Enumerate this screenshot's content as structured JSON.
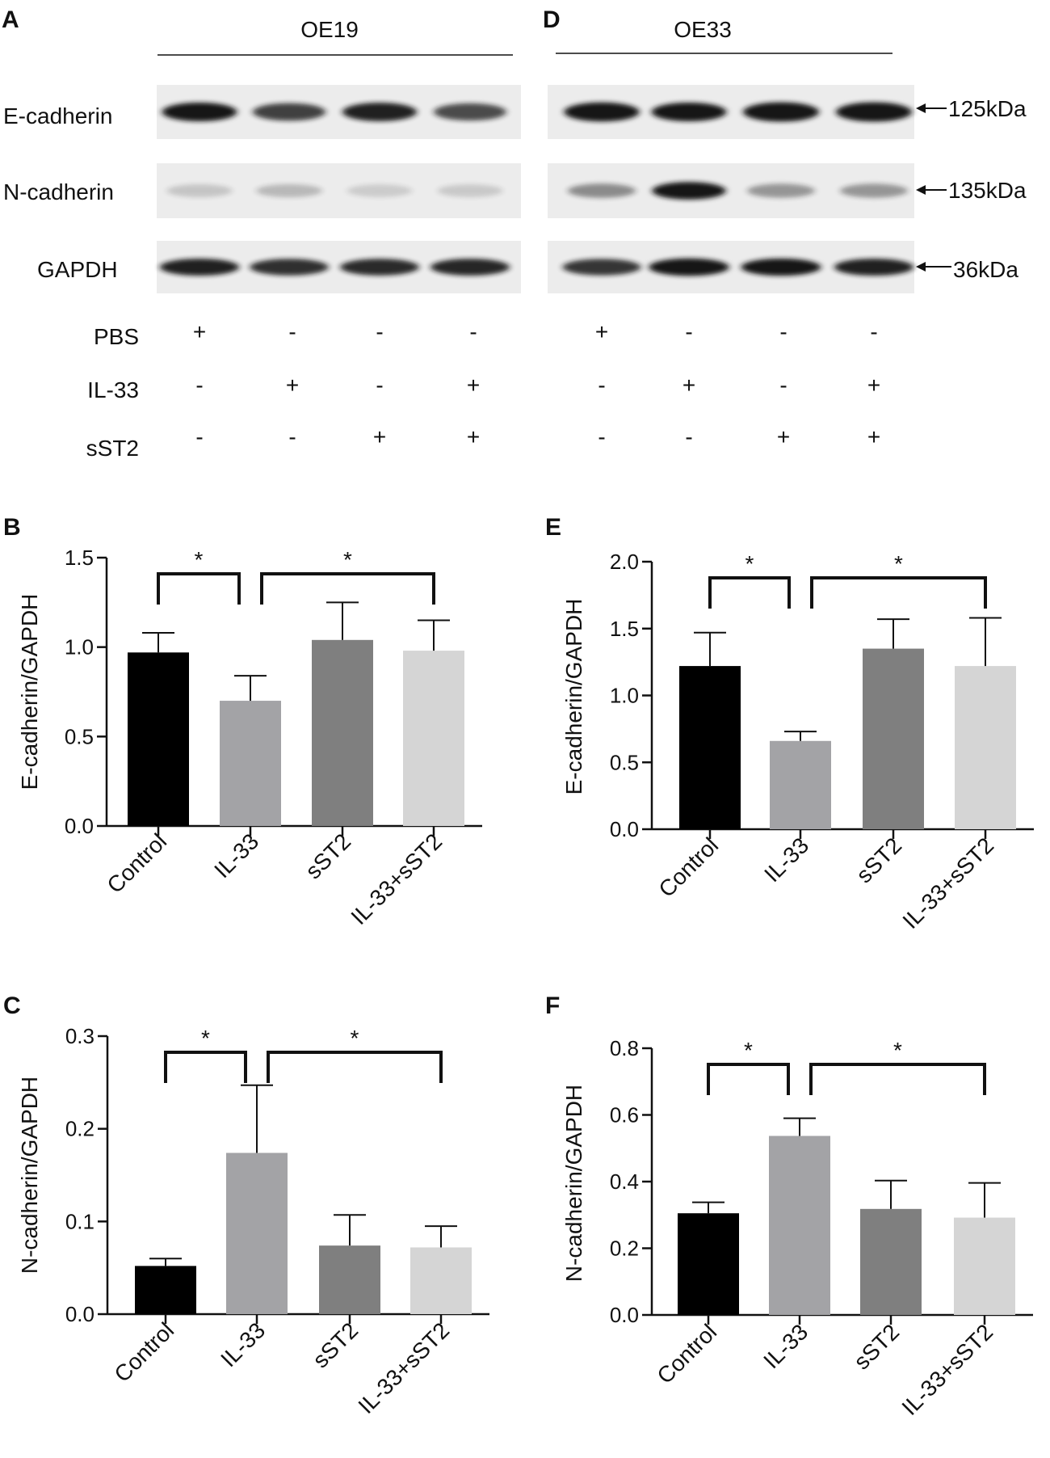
{
  "panel_letters": {
    "a": "A",
    "b": "B",
    "c": "C",
    "d": "D",
    "e": "E",
    "f": "F"
  },
  "blot_left": {
    "cell_line": "OE19"
  },
  "blot_right": {
    "cell_line": "OE33"
  },
  "row_labels": [
    "E-cadherin",
    "N-cadherin",
    "GAPDH"
  ],
  "mw_labels": [
    "125kDa",
    "135kDa",
    "36kDa"
  ],
  "treatments": [
    {
      "name": "PBS",
      "signs": [
        "+",
        "-",
        "-",
        "-"
      ]
    },
    {
      "name": "IL-33",
      "signs": [
        "-",
        "+",
        "-",
        "+"
      ]
    },
    {
      "name": "sST2",
      "signs": [
        "-",
        "-",
        "+",
        "+"
      ]
    }
  ],
  "colors": {
    "control": "#000000",
    "il33": "#a3a3a6",
    "sst2": "#7f7f7f",
    "il33_sst2": "#d5d5d5",
    "band": "#141414",
    "membrane": "#ececec"
  },
  "blot_bands": {
    "left": {
      "e_cadherin": [
        0.9,
        0.7,
        0.85,
        0.65
      ],
      "n_cadherin": [
        0.08,
        0.14,
        0.05,
        0.06
      ],
      "gapdh": [
        0.85,
        0.78,
        0.8,
        0.82
      ]
    },
    "right": {
      "e_cadherin": [
        0.95,
        0.9,
        1.0,
        1.0
      ],
      "n_cadherin": [
        0.35,
        0.95,
        0.3,
        0.3
      ],
      "gapdh": [
        0.75,
        0.95,
        0.9,
        0.85
      ]
    }
  },
  "chart_data": [
    {
      "panel": "B",
      "type": "bar",
      "categories": [
        "Control",
        "IL-33",
        "sST2",
        "IL-33+sST2"
      ],
      "values": [
        0.97,
        0.7,
        1.04,
        0.98
      ],
      "errors": [
        0.11,
        0.14,
        0.21,
        0.17
      ],
      "ylabel": "E-cadherin/GAPDH",
      "ylim": [
        0,
        1.5
      ],
      "yticks": [
        "0.0",
        "0.5",
        "1.0",
        "1.5"
      ],
      "tick_values": [
        0,
        0.5,
        1.0,
        1.5
      ],
      "significance": [
        {
          "from": 0,
          "to": 1,
          "label": "*"
        },
        {
          "from": 1,
          "to": 3,
          "label": "*"
        }
      ]
    },
    {
      "panel": "C",
      "type": "bar",
      "categories": [
        "Control",
        "IL-33",
        "sST2",
        "IL-33+sST2"
      ],
      "values": [
        0.052,
        0.174,
        0.074,
        0.072
      ],
      "errors": [
        0.008,
        0.073,
        0.033,
        0.023
      ],
      "ylabel": "N-cadherin/GAPDH",
      "ylim": [
        0,
        0.3
      ],
      "yticks": [
        "0.0",
        "0.1",
        "0.2",
        "0.3"
      ],
      "tick_values": [
        0,
        0.1,
        0.2,
        0.3
      ],
      "significance": [
        {
          "from": 0,
          "to": 1,
          "label": "*"
        },
        {
          "from": 1,
          "to": 3,
          "label": "*"
        }
      ]
    },
    {
      "panel": "E",
      "type": "bar",
      "categories": [
        "Control",
        "IL-33",
        "sST2",
        "IL-33+sST2"
      ],
      "values": [
        1.22,
        0.66,
        1.35,
        1.22
      ],
      "errors": [
        0.25,
        0.07,
        0.22,
        0.36
      ],
      "ylabel": "E-cadherin/GAPDH",
      "ylim": [
        0,
        2.0
      ],
      "yticks": [
        "0.0",
        "0.5",
        "1.0",
        "1.5",
        "2.0"
      ],
      "tick_values": [
        0,
        0.5,
        1.0,
        1.5,
        2.0
      ],
      "significance": [
        {
          "from": 0,
          "to": 1,
          "label": "*"
        },
        {
          "from": 1,
          "to": 3,
          "label": "*"
        }
      ]
    },
    {
      "panel": "F",
      "type": "bar",
      "categories": [
        "Control",
        "IL-33",
        "sST2",
        "IL-33+sST2"
      ],
      "values": [
        0.305,
        0.537,
        0.318,
        0.292
      ],
      "errors": [
        0.033,
        0.053,
        0.085,
        0.104
      ],
      "ylabel": "N-cadherin/GAPDH",
      "ylim": [
        0,
        0.8
      ],
      "yticks": [
        "0.0",
        "0.2",
        "0.4",
        "0.6",
        "0.8"
      ],
      "tick_values": [
        0,
        0.2,
        0.4,
        0.6,
        0.8
      ],
      "significance": [
        {
          "from": 0,
          "to": 1,
          "label": "*"
        },
        {
          "from": 1,
          "to": 3,
          "label": "*"
        }
      ]
    }
  ]
}
